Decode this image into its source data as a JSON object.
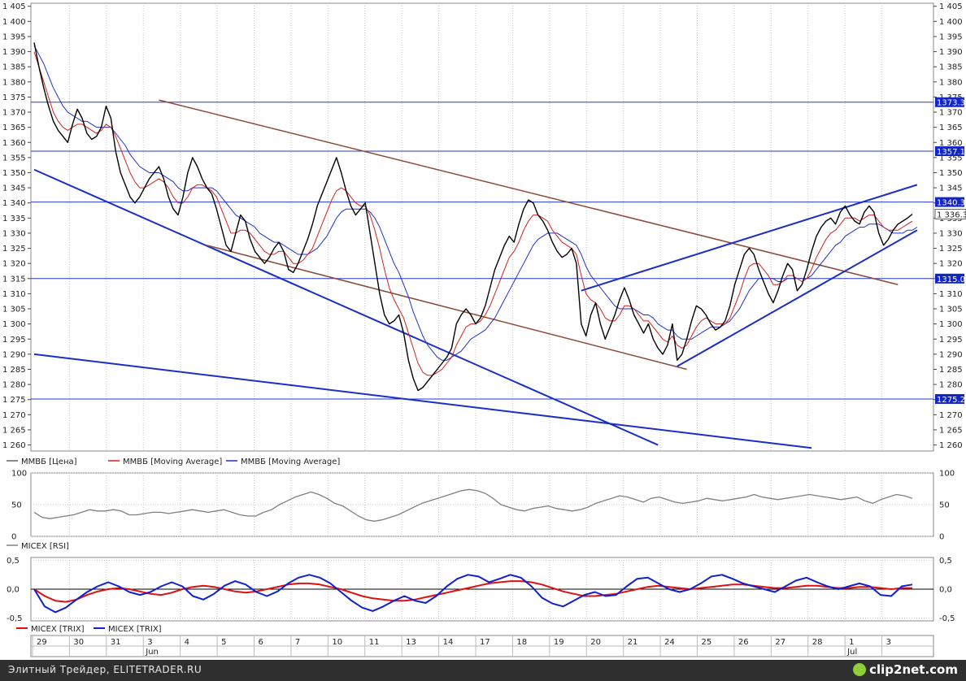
{
  "chart_data": [
    {
      "type": "line",
      "legend": [
        "ММВБ [Цена]",
        "ММВБ [Moving Average]",
        "ММВБ [Moving Average]"
      ],
      "legend_position": "bottom-left",
      "ylim": [
        1258,
        1406
      ],
      "yticks": [
        1260,
        1265,
        1270,
        1275,
        1280,
        1285,
        1290,
        1295,
        1300,
        1305,
        1310,
        1315,
        1320,
        1325,
        1330,
        1335,
        1340,
        1345,
        1350,
        1355,
        1360,
        1365,
        1370,
        1375,
        1380,
        1385,
        1390,
        1395,
        1400,
        1405
      ],
      "ytick_labels": [
        "1 260",
        "1 265",
        "1 270",
        "1 275",
        "1 280",
        "1 285",
        "1 290",
        "1 295",
        "1 300",
        "1 305",
        "1 310",
        "1 315",
        "1 320",
        "1 325",
        "1 330",
        "1 335",
        "1 340",
        "1 345",
        "1 350",
        "1 355",
        "1 360",
        "1 365",
        "1 370",
        "1 375",
        "1 380",
        "1 385",
        "1 390",
        "1 395",
        "1 400",
        "1 405"
      ],
      "x_date_labels": [
        "29",
        "30",
        "31",
        "3",
        "4",
        "5",
        "6",
        "7",
        "10",
        "11",
        "13",
        "14",
        "17",
        "18",
        "19",
        "20",
        "21",
        "24",
        "25",
        "26",
        "27",
        "28",
        "1",
        "3"
      ],
      "month_labels": [
        "Jun",
        "Jul"
      ],
      "grid": true,
      "horizontal_levels": [
        {
          "value": 1373.3,
          "label": "1373.3"
        },
        {
          "value": 1357.1,
          "label": "1357.1"
        },
        {
          "value": 1340.3,
          "label": "1340.3"
        },
        {
          "value": 1315.0,
          "label": "1315.0"
        },
        {
          "value": 1275.2,
          "label": "1275.2"
        }
      ],
      "last_price": {
        "value": 1336.3,
        "label": "1 336.3"
      },
      "series": [
        {
          "name": "ММВБ [Цена]",
          "color": "#000000",
          "values": [
            1393,
            1385,
            1378,
            1372,
            1367,
            1364,
            1362,
            1360,
            1366,
            1371,
            1368,
            1363,
            1361,
            1362,
            1365,
            1372,
            1368,
            1357,
            1350,
            1346,
            1342,
            1340,
            1342,
            1345,
            1348,
            1350,
            1352,
            1348,
            1342,
            1338,
            1336,
            1342,
            1350,
            1355,
            1352,
            1348,
            1345,
            1343,
            1338,
            1332,
            1326,
            1324,
            1330,
            1336,
            1334,
            1328,
            1324,
            1322,
            1320,
            1322,
            1325,
            1327,
            1324,
            1318,
            1317,
            1320,
            1324,
            1328,
            1333,
            1339,
            1343,
            1347,
            1351,
            1355,
            1350,
            1344,
            1339,
            1336,
            1338,
            1340,
            1330,
            1320,
            1310,
            1303,
            1300,
            1301,
            1303,
            1297,
            1288,
            1282,
            1278,
            1279,
            1281,
            1283,
            1285,
            1287,
            1289,
            1292,
            1300,
            1303,
            1305,
            1303,
            1300,
            1302,
            1306,
            1312,
            1318,
            1322,
            1326,
            1329,
            1327,
            1333,
            1338,
            1341,
            1340,
            1336,
            1334,
            1331,
            1327,
            1324,
            1322,
            1323,
            1325,
            1320,
            1300,
            1296,
            1303,
            1307,
            1300,
            1295,
            1299,
            1303,
            1308,
            1312,
            1308,
            1303,
            1300,
            1297,
            1300,
            1295,
            1292,
            1290,
            1293,
            1300,
            1288,
            1290,
            1295,
            1301,
            1306,
            1305,
            1303,
            1300,
            1298,
            1299,
            1301,
            1306,
            1313,
            1318,
            1323,
            1325,
            1323,
            1318,
            1314,
            1310,
            1307,
            1311,
            1316,
            1320,
            1318,
            1311,
            1313,
            1318,
            1324,
            1329,
            1332,
            1334,
            1335,
            1333,
            1337,
            1339,
            1336,
            1334,
            1333,
            1337,
            1339,
            1337,
            1330,
            1326,
            1328,
            1331,
            1333,
            1334,
            1335,
            1336.3
          ]
        },
        {
          "name": "ММВБ [Moving Average]",
          "color": "#d42020",
          "values": [
            1390,
            1385,
            1380,
            1375,
            1370,
            1367,
            1365,
            1364,
            1365,
            1366,
            1366,
            1365,
            1364,
            1363,
            1364,
            1366,
            1365,
            1362,
            1358,
            1354,
            1350,
            1347,
            1345,
            1345,
            1346,
            1347,
            1348,
            1347,
            1345,
            1342,
            1340,
            1340,
            1342,
            1345,
            1346,
            1346,
            1345,
            1344,
            1342,
            1338,
            1334,
            1330,
            1330,
            1331,
            1331,
            1330,
            1328,
            1326,
            1324,
            1323,
            1323,
            1324,
            1324,
            1322,
            1320,
            1320,
            1321,
            1323,
            1325,
            1329,
            1333,
            1337,
            1341,
            1344,
            1345,
            1344,
            1342,
            1340,
            1339,
            1339,
            1336,
            1331,
            1325,
            1318,
            1312,
            1308,
            1305,
            1302,
            1297,
            1292,
            1287,
            1284,
            1283,
            1283,
            1284,
            1285,
            1287,
            1289,
            1293,
            1296,
            1299,
            1300,
            1300,
            1301,
            1303,
            1306,
            1310,
            1314,
            1318,
            1322,
            1324,
            1327,
            1331,
            1334,
            1336,
            1336,
            1335,
            1334,
            1331,
            1329,
            1327,
            1326,
            1325,
            1323,
            1316,
            1310,
            1308,
            1307,
            1305,
            1302,
            1301,
            1301,
            1303,
            1306,
            1306,
            1305,
            1303,
            1301,
            1301,
            1299,
            1297,
            1295,
            1294,
            1296,
            1293,
            1292,
            1293,
            1296,
            1299,
            1301,
            1302,
            1301,
            1300,
            1300,
            1300,
            1302,
            1306,
            1310,
            1315,
            1319,
            1320,
            1320,
            1318,
            1316,
            1313,
            1313,
            1314,
            1316,
            1316,
            1315,
            1314,
            1315,
            1318,
            1322,
            1325,
            1328,
            1330,
            1331,
            1333,
            1335,
            1335,
            1335,
            1334,
            1335,
            1336,
            1336,
            1334,
            1332,
            1331,
            1331,
            1331,
            1332,
            1333,
            1334
          ]
        },
        {
          "name": "ММВБ [Moving Average]",
          "color": "#2030c8",
          "values": [
            1392,
            1389,
            1386,
            1382,
            1378,
            1375,
            1372,
            1370,
            1369,
            1368,
            1367,
            1367,
            1366,
            1365,
            1365,
            1365,
            1365,
            1363,
            1361,
            1359,
            1356,
            1354,
            1352,
            1351,
            1350,
            1350,
            1350,
            1349,
            1348,
            1347,
            1345,
            1344,
            1344,
            1345,
            1345,
            1345,
            1345,
            1345,
            1344,
            1342,
            1340,
            1338,
            1336,
            1335,
            1334,
            1333,
            1332,
            1330,
            1329,
            1328,
            1327,
            1327,
            1326,
            1325,
            1324,
            1323,
            1323,
            1323,
            1324,
            1325,
            1327,
            1329,
            1332,
            1335,
            1337,
            1338,
            1338,
            1338,
            1338,
            1338,
            1337,
            1335,
            1332,
            1328,
            1324,
            1320,
            1317,
            1313,
            1309,
            1304,
            1300,
            1296,
            1293,
            1291,
            1289,
            1288,
            1288,
            1289,
            1290,
            1291,
            1293,
            1295,
            1296,
            1297,
            1298,
            1300,
            1302,
            1305,
            1308,
            1311,
            1314,
            1317,
            1320,
            1323,
            1326,
            1328,
            1329,
            1330,
            1330,
            1330,
            1329,
            1328,
            1327,
            1326,
            1323,
            1319,
            1316,
            1314,
            1312,
            1310,
            1308,
            1306,
            1305,
            1305,
            1305,
            1305,
            1304,
            1303,
            1303,
            1302,
            1300,
            1299,
            1298,
            1298,
            1296,
            1295,
            1295,
            1295,
            1296,
            1297,
            1298,
            1299,
            1299,
            1299,
            1300,
            1301,
            1303,
            1305,
            1308,
            1311,
            1313,
            1315,
            1315,
            1315,
            1315,
            1314,
            1314,
            1315,
            1315,
            1315,
            1315,
            1315,
            1316,
            1318,
            1320,
            1322,
            1324,
            1326,
            1327,
            1329,
            1330,
            1331,
            1332,
            1332,
            1333,
            1333,
            1333,
            1332,
            1331,
            1330,
            1330,
            1330,
            1331,
            1331,
            1332
          ]
        }
      ]
    },
    {
      "type": "line",
      "legend": [
        "MICEX [RSI]"
      ],
      "legend_position": "bottom-left",
      "ylim": [
        0,
        100
      ],
      "yticks": [
        0,
        50,
        100
      ],
      "ytick_labels": [
        "0",
        "50",
        "100"
      ],
      "grid": true,
      "series": [
        {
          "name": "MICEX [RSI]",
          "color": "#808080",
          "values": [
            38,
            30,
            28,
            30,
            32,
            34,
            38,
            42,
            40,
            40,
            42,
            40,
            34,
            34,
            36,
            38,
            38,
            36,
            38,
            40,
            42,
            40,
            38,
            40,
            42,
            38,
            34,
            32,
            32,
            38,
            42,
            50,
            56,
            62,
            66,
            70,
            66,
            60,
            52,
            48,
            40,
            32,
            26,
            24,
            26,
            30,
            34,
            40,
            46,
            52,
            56,
            60,
            64,
            68,
            72,
            74,
            72,
            68,
            60,
            50,
            46,
            42,
            40,
            44,
            46,
            48,
            44,
            42,
            40,
            42,
            46,
            52,
            56,
            60,
            64,
            62,
            58,
            54,
            60,
            62,
            58,
            54,
            52,
            54,
            56,
            60,
            58,
            56,
            58,
            60,
            62,
            66,
            62,
            60,
            58,
            60,
            62,
            64,
            66,
            64,
            62,
            60,
            58,
            60,
            62,
            56,
            52,
            58,
            62,
            66,
            64,
            60
          ]
        }
      ]
    },
    {
      "type": "line",
      "legend": [
        "MICEX [TRIX]",
        "MICEX [TRIX]"
      ],
      "legend_position": "bottom-left",
      "ylim": [
        -0.55,
        0.55
      ],
      "yticks": [
        -0.5,
        0.0,
        0.5
      ],
      "ytick_labels": [
        "-0,5",
        "0,0",
        "0,5"
      ],
      "grid": true,
      "series": [
        {
          "name": "MICEX [TRIX]",
          "color": "#e01010",
          "values": [
            0.0,
            -0.12,
            -0.2,
            -0.22,
            -0.18,
            -0.1,
            -0.04,
            0.0,
            0.02,
            0.0,
            -0.04,
            -0.08,
            -0.1,
            -0.06,
            0.0,
            0.04,
            0.06,
            0.04,
            0.0,
            -0.04,
            -0.06,
            -0.04,
            0.0,
            0.04,
            0.08,
            0.1,
            0.1,
            0.08,
            0.04,
            0.0,
            -0.06,
            -0.12,
            -0.16,
            -0.18,
            -0.2,
            -0.2,
            -0.18,
            -0.14,
            -0.1,
            -0.06,
            -0.02,
            0.02,
            0.06,
            0.1,
            0.12,
            0.14,
            0.14,
            0.12,
            0.08,
            0.02,
            -0.04,
            -0.08,
            -0.12,
            -0.12,
            -0.1,
            -0.08,
            -0.04,
            0.0,
            0.04,
            0.06,
            0.04,
            0.02,
            0.0,
            0.02,
            0.04,
            0.06,
            0.08,
            0.08,
            0.06,
            0.04,
            0.02,
            0.02,
            0.04,
            0.06,
            0.06,
            0.04,
            0.02,
            0.02,
            0.04,
            0.04,
            0.02,
            0.0,
            0.02,
            0.02
          ]
        },
        {
          "name": "MICEX [TRIX]",
          "color": "#1020d0",
          "values": [
            0.0,
            -0.3,
            -0.4,
            -0.32,
            -0.18,
            -0.05,
            0.05,
            0.12,
            0.05,
            -0.05,
            -0.1,
            -0.05,
            0.05,
            0.12,
            0.05,
            -0.12,
            -0.18,
            -0.08,
            0.06,
            0.14,
            0.08,
            -0.05,
            -0.12,
            -0.04,
            0.1,
            0.2,
            0.25,
            0.2,
            0.1,
            -0.05,
            -0.2,
            -0.32,
            -0.38,
            -0.3,
            -0.2,
            -0.12,
            -0.2,
            -0.24,
            -0.12,
            0.05,
            0.18,
            0.25,
            0.22,
            0.12,
            0.18,
            0.25,
            0.2,
            0.05,
            -0.15,
            -0.25,
            -0.3,
            -0.2,
            -0.1,
            -0.05,
            -0.12,
            -0.1,
            0.05,
            0.18,
            0.2,
            0.1,
            0.0,
            -0.05,
            0.0,
            0.1,
            0.22,
            0.25,
            0.18,
            0.1,
            0.05,
            0.0,
            -0.05,
            0.05,
            0.15,
            0.2,
            0.12,
            0.05,
            0.0,
            0.05,
            0.1,
            0.05,
            -0.1,
            -0.12,
            0.05,
            0.08
          ]
        }
      ]
    }
  ],
  "footer": {
    "site_text": "Элитный Трейдер, ELITETRADER.RU",
    "logo_text": "clip2net.com"
  }
}
